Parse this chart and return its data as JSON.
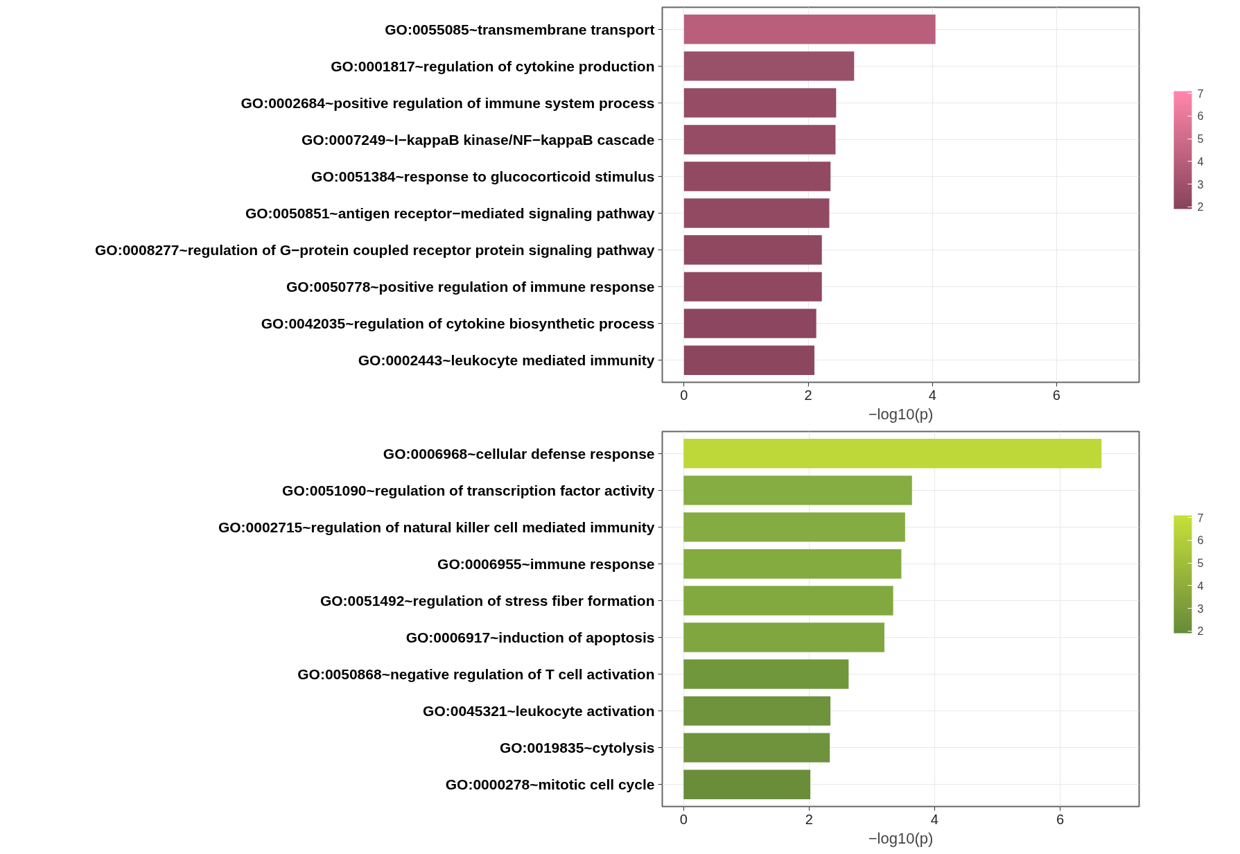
{
  "chart_data": [
    {
      "type": "bar",
      "orientation": "horizontal",
      "xlabel": "−log10(p)",
      "xlim": [
        -0.35,
        7.33
      ],
      "xticks": [
        0,
        2,
        4,
        6
      ],
      "grid": true,
      "clim": [
        1.9,
        7.1
      ],
      "cticks": [
        2,
        3,
        4,
        5,
        6,
        7
      ],
      "categories": [
        "GO:0055085~transmembrane transport",
        "GO:0001817~regulation of cytokine production",
        "GO:0002684~positive regulation of immune system process",
        "GO:0007249~I−kappaB kinase/NF−kappaB cascade",
        "GO:0051384~response to glucocorticoid stimulus",
        "GO:0050851~antigen receptor−mediated signaling pathway",
        "GO:0008277~regulation of G−protein coupled receptor protein signaling pathway",
        "GO:0050778~positive regulation of immune response",
        "GO:0042035~regulation of cytokine biosynthetic process",
        "GO:0002443~leukocyte mediated immunity"
      ],
      "values": [
        4.05,
        2.74,
        2.45,
        2.44,
        2.36,
        2.34,
        2.22,
        2.22,
        2.13,
        2.1
      ],
      "colors": [
        "#b95f7c",
        "#995169",
        "#954c64",
        "#954c64",
        "#924a62",
        "#924a62",
        "#8f4860",
        "#8f4860",
        "#8d465f",
        "#8c465e"
      ]
    },
    {
      "type": "bar",
      "orientation": "horizontal",
      "xlabel": "−log10(p)",
      "xlim": [
        -0.34,
        7.26
      ],
      "xticks": [
        0,
        2,
        4,
        6
      ],
      "grid": true,
      "clim": [
        1.9,
        7.1
      ],
      "cticks": [
        2,
        3,
        4,
        5,
        6,
        7
      ],
      "categories": [
        "GO:0006968~cellular defense response",
        "GO:0051090~regulation of transcription factor activity",
        "GO:0002715~regulation of natural killer cell mediated immunity",
        "GO:0006955~immune response",
        "GO:0051492~regulation of stress fiber formation",
        "GO:0006917~induction of apoptosis",
        "GO:0050868~negative regulation of T cell activation",
        "GO:0045321~leukocyte activation",
        "GO:0019835~cytolysis",
        "GO:0000278~mitotic cell cycle"
      ],
      "values": [
        6.66,
        3.64,
        3.53,
        3.47,
        3.34,
        3.2,
        2.63,
        2.34,
        2.33,
        2.02
      ],
      "colors": [
        "#bed83a",
        "#85ad41",
        "#84ac40",
        "#83ab40",
        "#81a93f",
        "#80a73f",
        "#71973d",
        "#6e933c",
        "#6e933c",
        "#6a8d3a"
      ]
    }
  ]
}
